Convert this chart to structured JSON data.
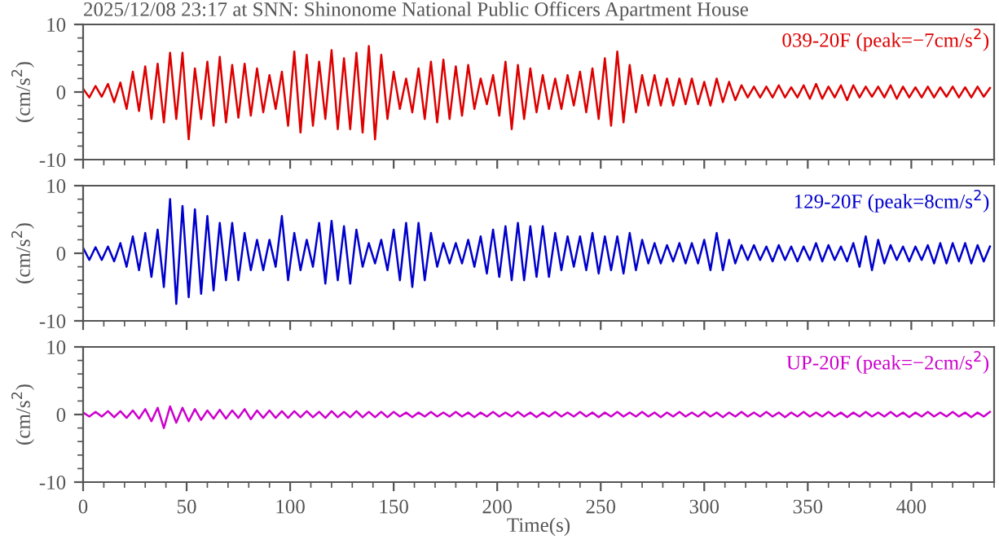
{
  "chart_data": [
    {
      "type": "line",
      "title": "2025/12/08 23:17 at SNN: Shinonome National Public Officers Apartment House",
      "ylabel": "(cm/s$^{2}$)",
      "annotations": [
        "039-20F (peak=−7cm/s$^{2}$)"
      ],
      "x": [
        0,
        3,
        6,
        9,
        12,
        15,
        18,
        21,
        24,
        27,
        30,
        33,
        36,
        39,
        42,
        45,
        48,
        51,
        54,
        57,
        60,
        63,
        66,
        69,
        72,
        75,
        78,
        81,
        84,
        87,
        90,
        93,
        96,
        99,
        102,
        105,
        108,
        111,
        114,
        117,
        120,
        123,
        126,
        129,
        132,
        135,
        138,
        141,
        144,
        147,
        150,
        153,
        156,
        159,
        162,
        165,
        168,
        171,
        174,
        177,
        180,
        183,
        186,
        189,
        192,
        195,
        198,
        201,
        204,
        207,
        210,
        213,
        216,
        219,
        222,
        225,
        228,
        231,
        234,
        237,
        240,
        243,
        246,
        249,
        252,
        255,
        258,
        261,
        264,
        267,
        270,
        273,
        276,
        279,
        282,
        285,
        288,
        291,
        294,
        297,
        300,
        303,
        306,
        309,
        312,
        315,
        318,
        321,
        324,
        327,
        330,
        333,
        336,
        339,
        342,
        345,
        348,
        351,
        354,
        357,
        360,
        363,
        366,
        369,
        372,
        375,
        378,
        381,
        384,
        387,
        390,
        393,
        396,
        399,
        402,
        405,
        408,
        411,
        414,
        417,
        420,
        423,
        426,
        429,
        432,
        435,
        438
      ],
      "series": [
        {
          "color": "#dd0000",
          "values": [
            0.5,
            -0.8,
            0.9,
            -0.7,
            1.2,
            -1.5,
            1.4,
            -2.5,
            3,
            -2.8,
            3.8,
            -4,
            4.2,
            -4.5,
            5.8,
            -4,
            5.8,
            -7,
            3.5,
            -4,
            4.5,
            -5,
            5.2,
            -4.5,
            4,
            -3.8,
            4.2,
            -3.5,
            3.5,
            -3,
            2.5,
            -2.5,
            3,
            -5,
            6,
            -6,
            5.5,
            -5,
            4.5,
            -4,
            6.2,
            -5.5,
            5,
            -5.5,
            5.8,
            -6,
            6.8,
            -7,
            5.5,
            -4,
            3,
            -2.5,
            2,
            -3,
            3.5,
            -4,
            4.5,
            -4.5,
            4.8,
            -4,
            3.8,
            -3.5,
            4,
            -2.5,
            2,
            -1.8,
            2.5,
            -3.5,
            4.5,
            -5.5,
            4,
            -4,
            3.5,
            -3,
            2.5,
            -2.5,
            2,
            -2.5,
            2.5,
            -2,
            3,
            -3,
            3.5,
            -4,
            5,
            -5,
            6,
            -4.5,
            4,
            -3,
            2.5,
            -2,
            2.5,
            -2,
            2,
            -2,
            2,
            -1.8,
            2,
            -1.8,
            1.5,
            -2,
            2,
            -1.5,
            1.5,
            -1.2,
            1,
            -0.8,
            0.8,
            -0.8,
            0.8,
            -0.8,
            1,
            -0.8,
            0.7,
            -0.8,
            1,
            -1,
            1.2,
            -1,
            0.8,
            -0.8,
            1,
            -1.2,
            1,
            -0.8,
            0.8,
            -0.7,
            0.8,
            -0.8,
            1,
            -1,
            0.8,
            -0.8,
            0.7,
            -0.8,
            0.8,
            -0.8,
            0.7,
            -0.7,
            0.8,
            -0.8,
            0.7,
            -0.8,
            0.8,
            -0.7,
            0.6
          ]
        }
      ],
      "xlim": [
        0,
        440
      ],
      "xticks": [
        0,
        50,
        100,
        150,
        200,
        250,
        300,
        350,
        400
      ],
      "ylim": [
        -10,
        10
      ],
      "yticks": [
        -10,
        0,
        10
      ],
      "tick_labels": "y",
      "grid": false,
      "legend": false
    },
    {
      "type": "line",
      "ylabel": "(cm/s$^{2}$)",
      "annotations": [
        "129-20F (peak=8cm/s$^{2}$)"
      ],
      "x": [
        0,
        3,
        6,
        9,
        12,
        15,
        18,
        21,
        24,
        27,
        30,
        33,
        36,
        39,
        42,
        45,
        48,
        51,
        54,
        57,
        60,
        63,
        66,
        69,
        72,
        75,
        78,
        81,
        84,
        87,
        90,
        93,
        96,
        99,
        102,
        105,
        108,
        111,
        114,
        117,
        120,
        123,
        126,
        129,
        132,
        135,
        138,
        141,
        144,
        147,
        150,
        153,
        156,
        159,
        162,
        165,
        168,
        171,
        174,
        177,
        180,
        183,
        186,
        189,
        192,
        195,
        198,
        201,
        204,
        207,
        210,
        213,
        216,
        219,
        222,
        225,
        228,
        231,
        234,
        237,
        240,
        243,
        246,
        249,
        252,
        255,
        258,
        261,
        264,
        267,
        270,
        273,
        276,
        279,
        282,
        285,
        288,
        291,
        294,
        297,
        300,
        303,
        306,
        309,
        312,
        315,
        318,
        321,
        324,
        327,
        330,
        333,
        336,
        339,
        342,
        345,
        348,
        351,
        354,
        357,
        360,
        363,
        366,
        369,
        372,
        375,
        378,
        381,
        384,
        387,
        390,
        393,
        396,
        399,
        402,
        405,
        408,
        411,
        414,
        417,
        420,
        423,
        426,
        429,
        432,
        435,
        438
      ],
      "series": [
        {
          "color": "#0000cc",
          "values": [
            0.8,
            -1,
            0.9,
            -1,
            1,
            -1.2,
            1.5,
            -2,
            2.5,
            -2.5,
            3,
            -3.5,
            3.5,
            -5,
            8,
            -7.5,
            7,
            -6.5,
            6.5,
            -6,
            5.5,
            -5.5,
            4.5,
            -4,
            4.5,
            -4,
            3,
            -2.5,
            2,
            -2.5,
            2,
            -2,
            5.5,
            -4,
            3,
            -2.5,
            2,
            -2,
            4.5,
            -4.5,
            4.8,
            -4,
            4,
            -4.5,
            3.5,
            -2,
            1.5,
            -1.5,
            2,
            -2.5,
            3.5,
            -4,
            4.5,
            -5,
            4.5,
            -4,
            3,
            -2,
            1.5,
            -1.5,
            1.5,
            -1.5,
            2,
            -2,
            2.5,
            -3,
            3.5,
            -3.5,
            4,
            -4,
            4.5,
            -4,
            4,
            -3.5,
            4,
            -3.5,
            3,
            -2.5,
            2.5,
            -2,
            2.5,
            -2.5,
            3,
            -3,
            2.5,
            -2.5,
            2.5,
            -3,
            3,
            -2.5,
            2,
            -1.5,
            1.5,
            -1.5,
            1.2,
            -1.2,
            1.5,
            -1.5,
            1.5,
            -1.5,
            2,
            -2.5,
            3,
            -2.5,
            2,
            -1.5,
            1.2,
            -1,
            1.2,
            -1,
            1,
            -1.2,
            1.2,
            -1,
            1,
            -1.2,
            1,
            -1,
            1.5,
            -1.2,
            1.2,
            -1,
            1,
            -1.2,
            1.5,
            -2,
            2.5,
            -2.5,
            2,
            -1.5,
            1.2,
            -1,
            1,
            -1.2,
            1,
            -1,
            1.2,
            -1.5,
            1.5,
            -1.5,
            1.5,
            -1.2,
            1.5,
            -1.5,
            1.2,
            -1.2,
            1
          ]
        }
      ],
      "xlim": [
        0,
        440
      ],
      "xticks": [
        0,
        50,
        100,
        150,
        200,
        250,
        300,
        350,
        400
      ],
      "ylim": [
        -10,
        10
      ],
      "yticks": [
        -10,
        0,
        10
      ],
      "tick_labels": "y",
      "grid": false,
      "legend": false
    },
    {
      "type": "line",
      "xlabel": "Time(s)",
      "ylabel": "(cm/s$^{2}$)",
      "annotations": [
        "UP-20F (peak=−2cm/s$^{2}$)"
      ],
      "x": [
        0,
        3,
        6,
        9,
        12,
        15,
        18,
        21,
        24,
        27,
        30,
        33,
        36,
        39,
        42,
        45,
        48,
        51,
        54,
        57,
        60,
        63,
        66,
        69,
        72,
        75,
        78,
        81,
        84,
        87,
        90,
        93,
        96,
        99,
        102,
        105,
        108,
        111,
        114,
        117,
        120,
        123,
        126,
        129,
        132,
        135,
        138,
        141,
        144,
        147,
        150,
        153,
        156,
        159,
        162,
        165,
        168,
        171,
        174,
        177,
        180,
        183,
        186,
        189,
        192,
        195,
        198,
        201,
        204,
        207,
        210,
        213,
        216,
        219,
        222,
        225,
        228,
        231,
        234,
        237,
        240,
        243,
        246,
        249,
        252,
        255,
        258,
        261,
        264,
        267,
        270,
        273,
        276,
        279,
        282,
        285,
        288,
        291,
        294,
        297,
        300,
        303,
        306,
        309,
        312,
        315,
        318,
        321,
        324,
        327,
        330,
        333,
        336,
        339,
        342,
        345,
        348,
        351,
        354,
        357,
        360,
        363,
        366,
        369,
        372,
        375,
        378,
        381,
        384,
        387,
        390,
        393,
        396,
        399,
        402,
        405,
        408,
        411,
        414,
        417,
        420,
        423,
        426,
        429,
        432,
        435,
        438
      ],
      "series": [
        {
          "color": "#cc00cc",
          "values": [
            0.3,
            -0.3,
            0.4,
            -0.3,
            0.5,
            -0.4,
            0.5,
            -0.5,
            0.6,
            -0.6,
            0.8,
            -1,
            1,
            -2,
            1.2,
            -1.2,
            1,
            -1,
            0.8,
            -0.8,
            0.6,
            -0.6,
            0.7,
            -0.6,
            0.6,
            -0.5,
            0.8,
            -0.7,
            0.6,
            -0.5,
            0.6,
            -0.5,
            0.5,
            -0.5,
            0.5,
            -0.4,
            0.5,
            -0.4,
            0.4,
            -0.5,
            0.5,
            -0.4,
            0.4,
            -0.4,
            0.5,
            -0.4,
            0.4,
            -0.4,
            0.4,
            -0.4,
            0.4,
            -0.3,
            0.3,
            -0.4,
            0.3,
            -0.3,
            0.4,
            -0.3,
            0.3,
            -0.3,
            0.4,
            -0.3,
            0.3,
            -0.4,
            0.3,
            -0.3,
            0.4,
            -0.3,
            0.3,
            -0.3,
            0.4,
            -0.3,
            0.3,
            -0.4,
            0.3,
            -0.3,
            0.4,
            -0.3,
            0.3,
            -0.3,
            0.4,
            -0.3,
            0.3,
            -0.4,
            0.3,
            -0.3,
            0.4,
            -0.3,
            0.3,
            -0.3,
            0.4,
            -0.3,
            0.3,
            -0.4,
            0.3,
            -0.3,
            0.4,
            -0.3,
            0.3,
            -0.3,
            0.4,
            -0.3,
            0.3,
            -0.4,
            0.3,
            -0.3,
            0.4,
            -0.3,
            0.3,
            -0.3,
            0.4,
            -0.3,
            0.3,
            -0.4,
            0.3,
            -0.3,
            0.4,
            -0.3,
            0.3,
            -0.3,
            0.4,
            -0.3,
            0.3,
            -0.4,
            0.3,
            -0.3,
            0.4,
            -0.3,
            0.3,
            -0.3,
            0.4,
            -0.3,
            0.3,
            -0.4,
            0.3,
            -0.3,
            0.4,
            -0.3,
            0.3,
            -0.3,
            0.4,
            -0.3,
            0.3,
            -0.4,
            0.3,
            -0.3,
            0.4
          ]
        }
      ],
      "xlim": [
        0,
        440
      ],
      "xticks": [
        0,
        50,
        100,
        150,
        200,
        250,
        300,
        350,
        400
      ],
      "ylim": [
        -10,
        10
      ],
      "yticks": [
        -10,
        0,
        10
      ],
      "grid": false,
      "legend": false
    }
  ]
}
